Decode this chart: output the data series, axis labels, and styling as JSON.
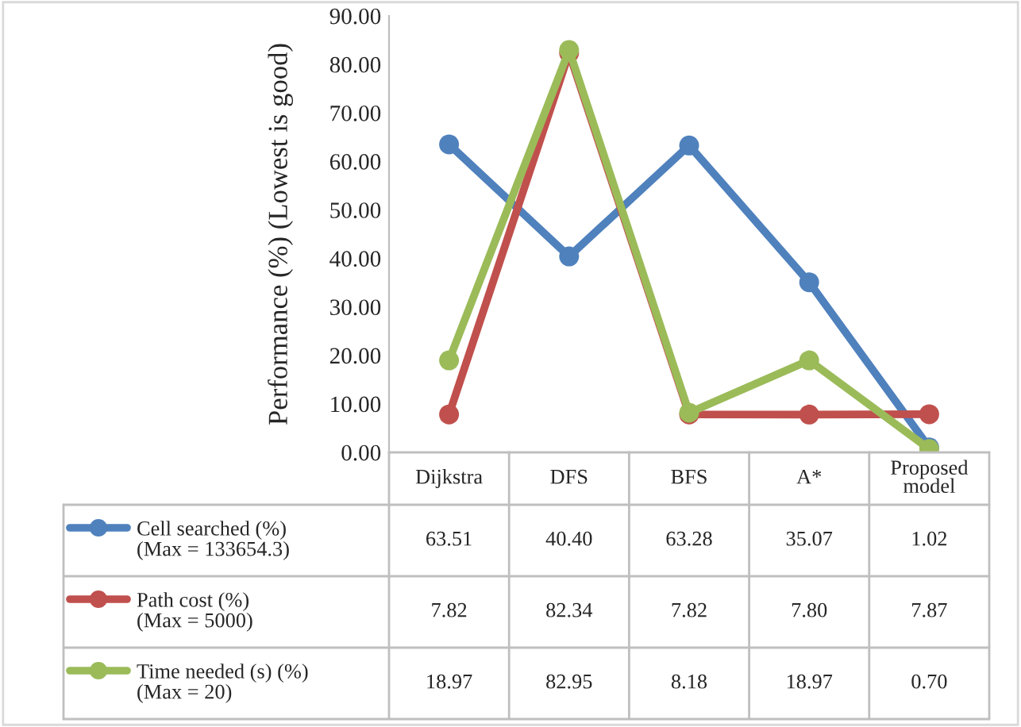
{
  "chart_data": {
    "type": "line",
    "ylabel": "Performance (%) (Lowest is good)",
    "categories": [
      "Dijkstra",
      "DFS",
      "BFS",
      "A*",
      "Proposed model"
    ],
    "ylim": [
      0,
      90
    ],
    "yticks": [
      {
        "value": 0,
        "label": "0.00"
      },
      {
        "value": 10,
        "label": "10.00"
      },
      {
        "value": 20,
        "label": "20.00"
      },
      {
        "value": 30,
        "label": "30.00"
      },
      {
        "value": 40,
        "label": "40.00"
      },
      {
        "value": 50,
        "label": "50.00"
      },
      {
        "value": 60,
        "label": "60.00"
      },
      {
        "value": 70,
        "label": "70.00"
      },
      {
        "value": 80,
        "label": "80.00"
      },
      {
        "value": 90,
        "label": "90.00"
      }
    ],
    "grid": false,
    "marker": "circle",
    "line_style": "solid",
    "legend": "bottom",
    "series": [
      {
        "name": "Cell searched (%)\n(Max = 133654.3)",
        "color": "#4f81bd",
        "values": [
          63.51,
          40.4,
          63.28,
          35.07,
          1.02
        ],
        "value_labels": [
          "63.51",
          "40.40",
          "63.28",
          "35.07",
          "1.02"
        ]
      },
      {
        "name": "Path cost (%)\n(Max = 5000)",
        "color": "#c0504d",
        "values": [
          7.82,
          82.34,
          7.82,
          7.8,
          7.87
        ],
        "value_labels": [
          "7.82",
          "82.34",
          "7.82",
          "7.80",
          "7.87"
        ]
      },
      {
        "name": "Time needed (s) (%)\n(Max = 20)",
        "color": "#9bbb59",
        "values": [
          18.97,
          82.95,
          8.18,
          18.97,
          0.7
        ],
        "value_labels": [
          "18.97",
          "82.95",
          "8.18",
          "18.97",
          "0.70"
        ]
      }
    ]
  }
}
